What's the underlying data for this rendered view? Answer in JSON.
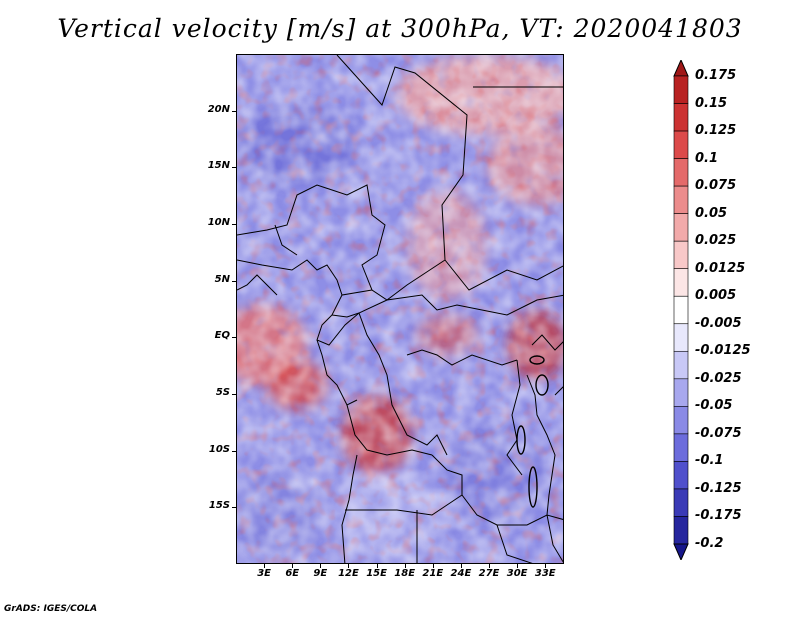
{
  "title": "Vertical velocity [m/s] at 300hPa, VT: 2020041803",
  "footer": "GrADS: IGES/COLA",
  "map": {
    "lat_labels": [
      {
        "lat": 20,
        "text": "20N"
      },
      {
        "lat": 15,
        "text": "15N"
      },
      {
        "lat": 10,
        "text": "10N"
      },
      {
        "lat": 5,
        "text": "5N"
      },
      {
        "lat": 0,
        "text": "EQ"
      },
      {
        "lat": -5,
        "text": "5S"
      },
      {
        "lat": -10,
        "text": "10S"
      },
      {
        "lat": -15,
        "text": "15S"
      }
    ],
    "lon_labels": [
      {
        "lon": 3,
        "text": "3E"
      },
      {
        "lon": 6,
        "text": "6E"
      },
      {
        "lon": 9,
        "text": "9E"
      },
      {
        "lon": 12,
        "text": "12E"
      },
      {
        "lon": 15,
        "text": "15E"
      },
      {
        "lon": 18,
        "text": "18E"
      },
      {
        "lon": 21,
        "text": "21E"
      },
      {
        "lon": 24,
        "text": "24E"
      },
      {
        "lon": 27,
        "text": "27E"
      },
      {
        "lon": 30,
        "text": "30E"
      },
      {
        "lon": 33,
        "text": "33E"
      }
    ],
    "extent": {
      "lon_min": 0,
      "lon_max": 35,
      "lat_min": -20,
      "lat_max": 25
    }
  },
  "colorbar": {
    "labels": [
      "0.175",
      "0.15",
      "0.125",
      "0.1",
      "0.075",
      "0.05",
      "0.025",
      "0.0125",
      "0.005",
      "-0.005",
      "-0.0125",
      "-0.025",
      "-0.05",
      "-0.075",
      "-0.1",
      "-0.125",
      "-0.175",
      "-0.2"
    ],
    "colors": [
      "#a01818",
      "#b82222",
      "#cc3232",
      "#dc4a4a",
      "#e46a6a",
      "#ec8c8c",
      "#f2aaaa",
      "#f8c8c8",
      "#fce6e6",
      "#ffffff",
      "#e8e8fc",
      "#c8c8f6",
      "#a8a8ee",
      "#8a8ae6",
      "#6c6cdc",
      "#5050cc",
      "#3a3ab6",
      "#26269e",
      "#16168a"
    ]
  }
}
